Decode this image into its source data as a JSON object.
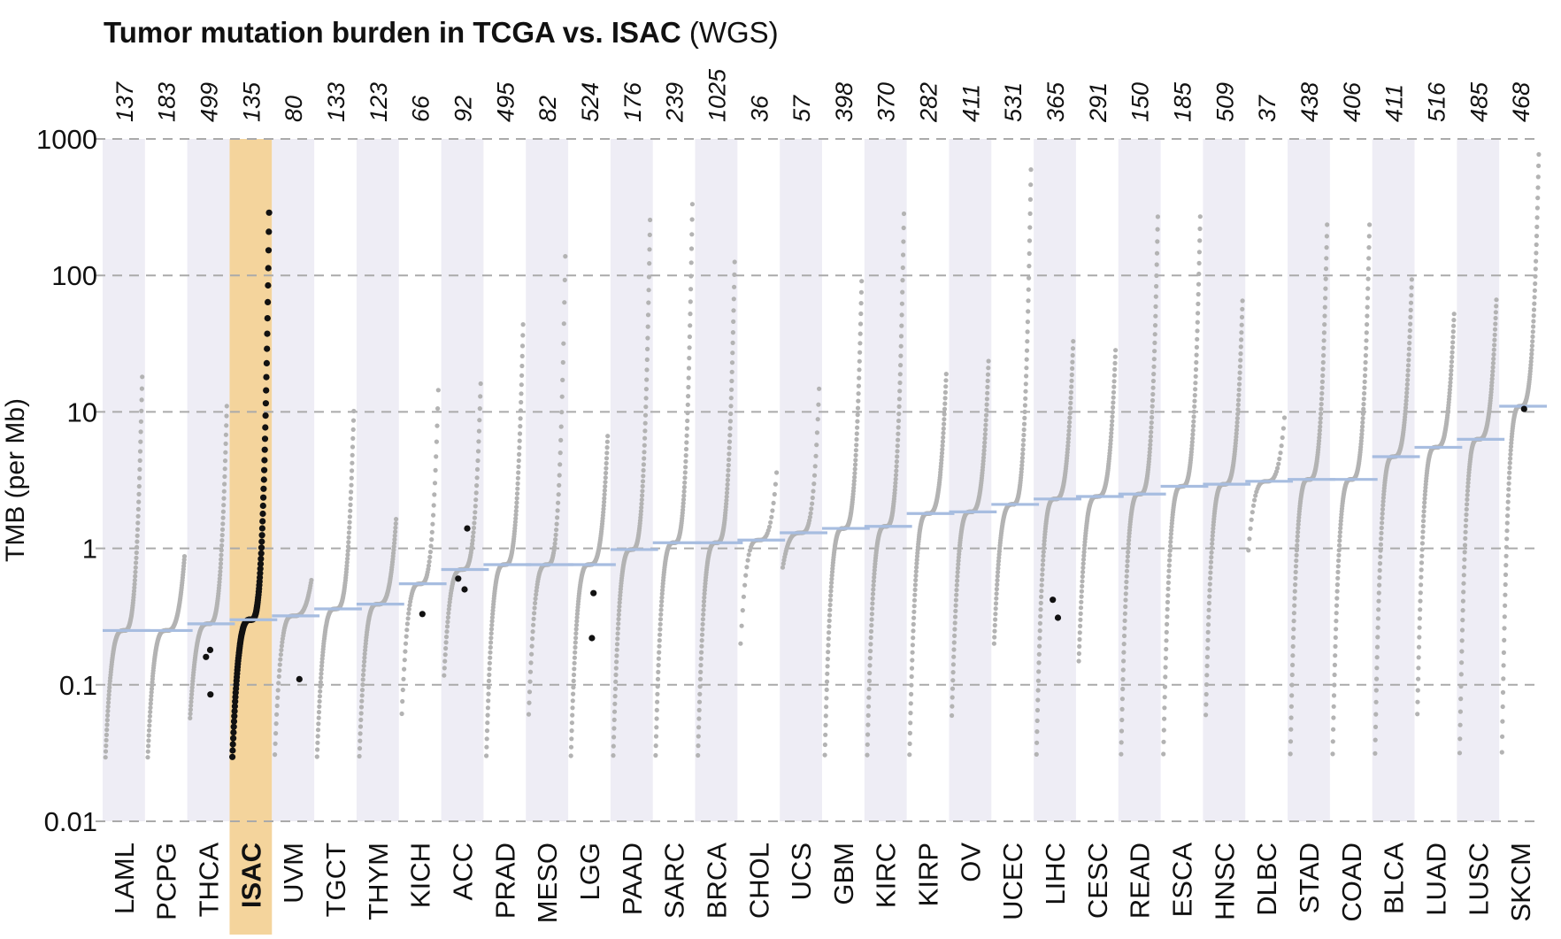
{
  "chart_data": {
    "type": "scatter",
    "title": "Tumor mutation burden in TCGA vs. ISAC",
    "subtitle": "(WGS)",
    "ylabel": "TMB (per Mb)",
    "xlabel": "",
    "yscale": "log",
    "ylim": [
      0.01,
      1000
    ],
    "yticks": [
      "0.01",
      "0.1",
      "1",
      "10",
      "100",
      "1000"
    ],
    "grid": "horizontal-dashed",
    "highlight_category": "ISAC",
    "colors": {
      "points": "#b3b3b3",
      "highlight_points": "#111111",
      "median": "#a7bde0",
      "band": "#eeedf5",
      "highlight_band": "#f4d49c",
      "grid": "#aaaaaa"
    },
    "categories": [
      {
        "name": "LAML",
        "n": "137",
        "median": 0.25,
        "min": 0.028,
        "max": 20
      },
      {
        "name": "PCPG",
        "n": "183",
        "median": 0.25,
        "min": 0.028,
        "max": 0.9
      },
      {
        "name": "THCA",
        "n": "499",
        "median": 0.28,
        "min": 0.055,
        "max": 12
      },
      {
        "name": "ISAC",
        "n": "135",
        "median": 0.3,
        "min": 0.028,
        "max": 340
      },
      {
        "name": "UVM",
        "n": "80",
        "median": 0.32,
        "min": 0.028,
        "max": 0.6
      },
      {
        "name": "TGCT",
        "n": "133",
        "median": 0.36,
        "min": 0.028,
        "max": 11
      },
      {
        "name": "THYM",
        "n": "123",
        "median": 0.39,
        "min": 0.028,
        "max": 1.7
      },
      {
        "name": "KICH",
        "n": "66",
        "median": 0.55,
        "min": 0.055,
        "max": 17
      },
      {
        "name": "ACC",
        "n": "92",
        "median": 0.7,
        "min": 0.11,
        "max": 18
      },
      {
        "name": "PRAD",
        "n": "495",
        "median": 0.76,
        "min": 0.028,
        "max": 48
      },
      {
        "name": "MESO",
        "n": "82",
        "median": 0.76,
        "min": 0.055,
        "max": 170
      },
      {
        "name": "LGG",
        "n": "524",
        "median": 0.76,
        "min": 0.028,
        "max": 7
      },
      {
        "name": "PAAD",
        "n": "176",
        "median": 0.98,
        "min": 0.028,
        "max": 290
      },
      {
        "name": "SARC",
        "n": "239",
        "median": 1.1,
        "min": 0.028,
        "max": 380
      },
      {
        "name": "BRCA",
        "n": "1025",
        "median": 1.1,
        "min": 0.028,
        "max": 140
      },
      {
        "name": "CHOL",
        "n": "36",
        "median": 1.15,
        "min": 0.17,
        "max": 4
      },
      {
        "name": "UCS",
        "n": "57",
        "median": 1.3,
        "min": 0.7,
        "max": 17
      },
      {
        "name": "GBM",
        "n": "398",
        "median": 1.4,
        "min": 0.028,
        "max": 100
      },
      {
        "name": "KIRC",
        "n": "370",
        "median": 1.45,
        "min": 0.028,
        "max": 320
      },
      {
        "name": "KIRP",
        "n": "282",
        "median": 1.8,
        "min": 0.028,
        "max": 20
      },
      {
        "name": "OV",
        "n": "411",
        "median": 1.85,
        "min": 0.055,
        "max": 25
      },
      {
        "name": "UCEC",
        "n": "531",
        "median": 2.1,
        "min": 0.19,
        "max": 680
      },
      {
        "name": "LIHC",
        "n": "365",
        "median": 2.3,
        "min": 0.028,
        "max": 35
      },
      {
        "name": "CESC",
        "n": "291",
        "median": 2.4,
        "min": 0.14,
        "max": 30
      },
      {
        "name": "READ",
        "n": "150",
        "median": 2.5,
        "min": 0.028,
        "max": 300
      },
      {
        "name": "ESCA",
        "n": "185",
        "median": 2.85,
        "min": 0.028,
        "max": 300
      },
      {
        "name": "HNSC",
        "n": "509",
        "median": 2.95,
        "min": 0.055,
        "max": 70
      },
      {
        "name": "DLBC",
        "n": "37",
        "median": 3.1,
        "min": 0.87,
        "max": 10
      },
      {
        "name": "STAD",
        "n": "438",
        "median": 3.2,
        "min": 0.028,
        "max": 260
      },
      {
        "name": "COAD",
        "n": "406",
        "median": 3.2,
        "min": 0.028,
        "max": 260
      },
      {
        "name": "BLCA",
        "n": "411",
        "median": 4.7,
        "min": 0.028,
        "max": 100
      },
      {
        "name": "LUAD",
        "n": "516",
        "median": 5.5,
        "min": 0.055,
        "max": 55
      },
      {
        "name": "LUSC",
        "n": "485",
        "median": 6.3,
        "min": 0.028,
        "max": 70
      },
      {
        "name": "SKCM",
        "n": "468",
        "median": 11,
        "min": 0.028,
        "max": 850
      }
    ],
    "highlight_points": [
      {
        "category": "THCA",
        "y": 0.085
      },
      {
        "category": "THCA",
        "y": 0.16
      },
      {
        "category": "THCA",
        "y": 0.18
      },
      {
        "category": "UVM",
        "y": 0.11
      },
      {
        "category": "KICH",
        "y": 0.33
      },
      {
        "category": "ACC",
        "y": 0.5
      },
      {
        "category": "ACC",
        "y": 0.6
      },
      {
        "category": "ACC",
        "y": 1.4
      },
      {
        "category": "LGG",
        "y": 0.22
      },
      {
        "category": "LGG",
        "y": 0.47
      },
      {
        "category": "LIHC",
        "y": 0.31
      },
      {
        "category": "LIHC",
        "y": 0.42
      },
      {
        "category": "SKCM",
        "y": 10.5
      }
    ]
  }
}
